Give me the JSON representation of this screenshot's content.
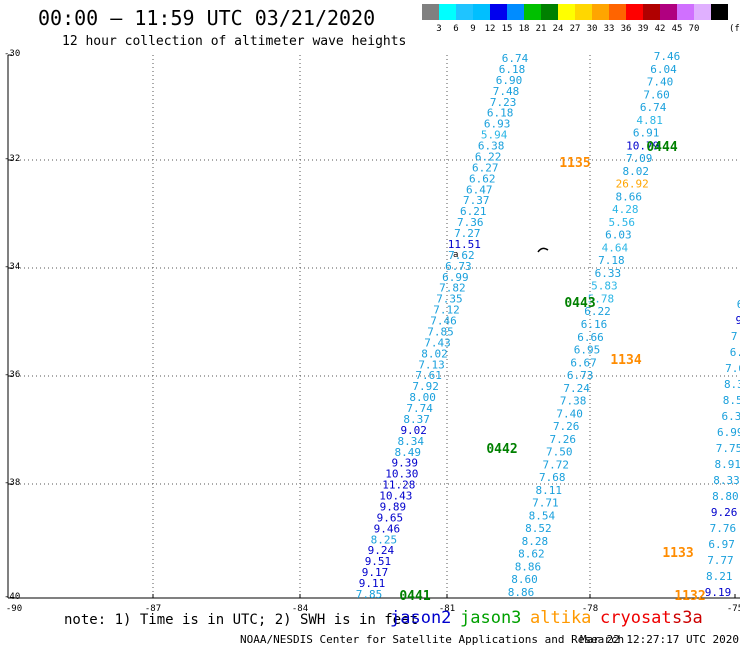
{
  "header": {
    "title": "00:00 – 11:59 UTC 03/21/2020",
    "subtitle": "12 hour collection of altimeter wave heights"
  },
  "color_scale": {
    "unit": "(ft)",
    "cells": [
      {
        "label": "",
        "color": "#808080"
      },
      {
        "label": "3",
        "color": "#00ffff"
      },
      {
        "label": "6",
        "color": "#1fc4ff"
      },
      {
        "label": "9",
        "color": "#00bfff"
      },
      {
        "label": "12",
        "color": "#0000ee"
      },
      {
        "label": "15",
        "color": "#008cff"
      },
      {
        "label": "18",
        "color": "#00c000"
      },
      {
        "label": "21",
        "color": "#008000"
      },
      {
        "label": "24",
        "color": "#ffff00"
      },
      {
        "label": "27",
        "color": "#ffd700"
      },
      {
        "label": "30",
        "color": "#ffa500"
      },
      {
        "label": "33",
        "color": "#ff6400"
      },
      {
        "label": "36",
        "color": "#ff0000"
      },
      {
        "label": "39",
        "color": "#b00000"
      },
      {
        "label": "42",
        "color": "#b00080"
      },
      {
        "label": "45",
        "color": "#d070ff"
      },
      {
        "label": "70",
        "color": "#e0b0ff"
      },
      {
        "label": "",
        "color": "#000000"
      }
    ]
  },
  "axes": {
    "lat_labels": [
      "-30",
      "-32",
      "-34",
      "-36",
      "-38",
      "-40"
    ],
    "lon_labels": [
      "-90",
      "-87",
      "-84",
      "-81",
      "-78",
      "-75"
    ]
  },
  "map": {
    "marker": "a",
    "tracks": [
      {
        "id": "t1",
        "color": "#1aa0dc",
        "label": "",
        "label_color": "#008000",
        "values": [
          "6.74",
          "6.18",
          "6.90",
          "7.48",
          "7.23",
          "6.18",
          "6.93",
          "5.94",
          "6.38",
          "6.22",
          "6.27",
          "6.62",
          "6.47",
          "7.37",
          "6.21",
          "7.36",
          "7.27",
          "11.51",
          "7.62",
          "6.73",
          "6.99",
          "7.82",
          "7.35",
          "7.12",
          "7.46",
          "7.85",
          "7.43",
          "8.02",
          "7.13",
          "7.61",
          "7.92",
          "8.00",
          "7.74",
          "8.37",
          "9.02",
          "8.34",
          "8.49",
          "9.39",
          "10.30",
          "11.28",
          "10.43",
          "9.89",
          "9.65",
          "9.46",
          "8.25",
          "9.24",
          "9.51",
          "9.17",
          "9.11",
          "7.85"
        ]
      },
      {
        "id": "t2",
        "color": "#1aa0dc",
        "label": "",
        "label_color": "#008000",
        "values": [
          "7.46",
          "6.04",
          "7.40",
          "7.60",
          "6.74",
          "4.81",
          "6.91",
          "10.79",
          "7.09",
          "8.02",
          "26.92",
          "8.66",
          "4.28",
          "5.56",
          "6.03",
          "4.64",
          "7.18",
          "6.33",
          "5.83",
          "5.78",
          "6.22",
          "6.16",
          "6.66",
          "6.95",
          "6.67",
          "6.73",
          "7.24",
          "7.38",
          "7.40",
          "7.26",
          "7.26",
          "7.50",
          "7.72",
          "7.68",
          "8.11",
          "7.71",
          "8.54",
          "8.52",
          "8.28",
          "8.62",
          "8.86",
          "8.60",
          "8.86"
        ]
      },
      {
        "id": "t3",
        "color": "#1aa0dc",
        "label": "",
        "label_color": "#008000",
        "values": [
          "6",
          "9",
          "7.",
          "6.",
          "7.6",
          "8.3",
          "8.5",
          "6.3",
          "6.99",
          "7.75",
          "8.91",
          "8.33",
          "8.80",
          "9.26",
          "7.76",
          "6.97",
          "7.77",
          "8.21",
          "9.19"
        ]
      }
    ],
    "pass_labels": [
      {
        "text": "0444",
        "color": "#008000"
      },
      {
        "text": "1135",
        "color": "#ff8c00"
      },
      {
        "text": "0443",
        "color": "#008000"
      },
      {
        "text": "1134",
        "color": "#ff8c00"
      },
      {
        "text": "0442",
        "color": "#008000"
      },
      {
        "text": "1133",
        "color": "#ff8c00"
      },
      {
        "text": "1132",
        "color": "#ff8c00"
      },
      {
        "text": "0441",
        "color": "#008000"
      }
    ]
  },
  "footer": {
    "note": "note: 1) Time is in UTC; 2) SWH is in feet",
    "legend": [
      {
        "text": "jason2",
        "color": "#0000cc"
      },
      {
        "text": "jason3",
        "color": "#00a000"
      },
      {
        "text": "altika",
        "color": "#ff9900"
      },
      {
        "text": "cryosat",
        "color": "#ee0000"
      },
      {
        "text": "s3a",
        "color": "#cc0000"
      }
    ],
    "credit_left": "NOAA/NESDIS Center for Satellite Applications and Research",
    "credit_right": "Mar 22 12:27:17 UTC 2020"
  }
}
